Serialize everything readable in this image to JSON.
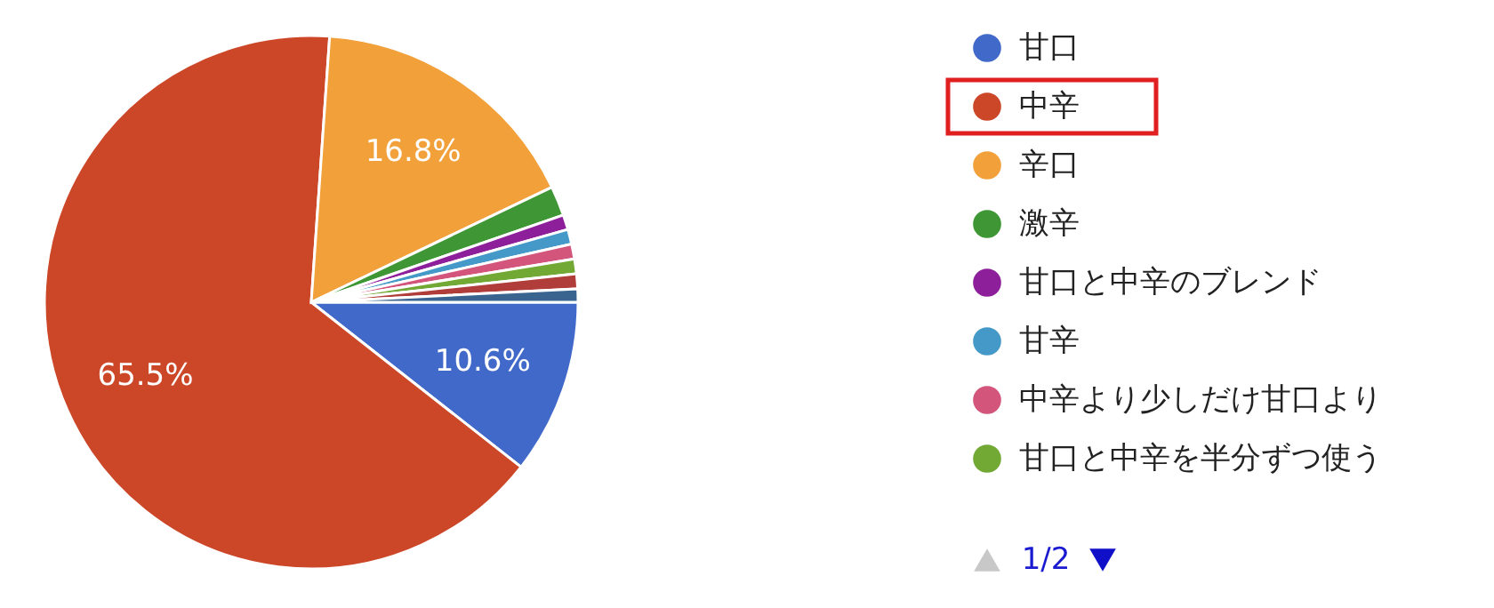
{
  "chart_data": {
    "type": "pie",
    "categories": [
      "甘口",
      "中辛",
      "辛口",
      "激辛",
      "甘口と中辛のブレンド",
      "甘辛",
      "中辛より少しだけ甘口より",
      "甘口と中辛を半分ずつ使う",
      null,
      null
    ],
    "values": [
      10.6,
      65.5,
      16.8,
      1.8,
      0.9,
      0.9,
      0.9,
      0.9,
      0.9,
      0.8
    ],
    "colors": [
      "#4169c9",
      "#cc4628",
      "#f2a03a",
      "#3e9634",
      "#8e1f9a",
      "#4499c8",
      "#d3557c",
      "#72a935",
      "#b03d3a",
      "#3a6490"
    ],
    "value_labels": [
      "10.6%",
      "65.5%",
      "16.8%",
      null,
      null,
      null,
      null,
      null,
      null,
      null
    ],
    "legend": "right",
    "annotations": [
      "1/2"
    ]
  }
}
